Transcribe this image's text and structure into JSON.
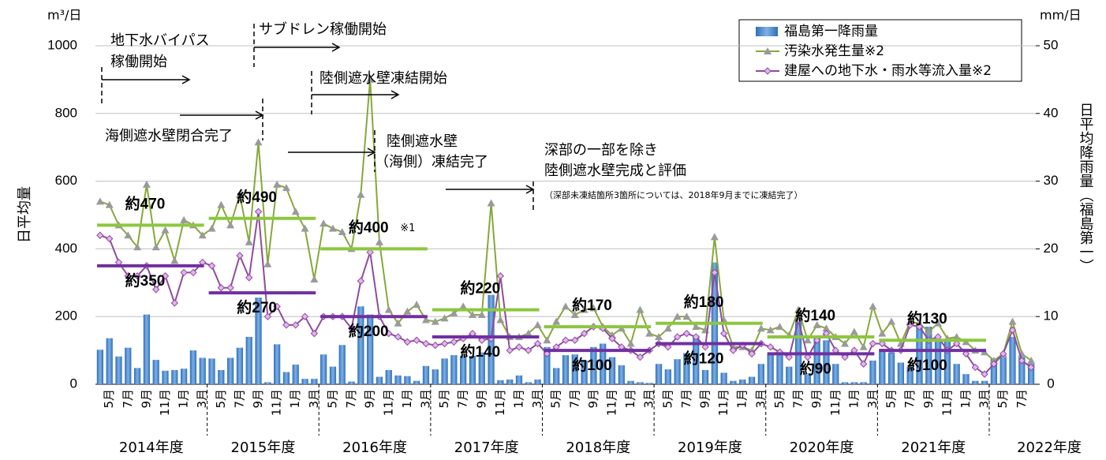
{
  "chart_data": {
    "type": "bar_line",
    "y_unit": "m³/日",
    "y2_unit": "mm/日",
    "ylabel": "日平均量",
    "y2label": "日平均降雨量（福島第一）",
    "ylim": [
      0,
      1000
    ],
    "yticks": [
      0,
      200,
      400,
      600,
      800,
      1000
    ],
    "y2lim": [
      0,
      50
    ],
    "y2ticks": [
      0,
      10,
      20,
      30,
      40,
      50
    ],
    "grid": true,
    "categories": [
      null,
      "5月",
      null,
      "7月",
      null,
      "9月",
      null,
      "11月",
      null,
      "1月",
      null,
      "3月",
      null,
      "5月",
      null,
      "7月",
      null,
      "9月",
      null,
      "11月",
      null,
      "1月",
      null,
      "3月",
      null,
      "5月",
      null,
      "7月",
      null,
      "9月",
      null,
      "11月",
      null,
      "1月",
      null,
      "3月",
      null,
      "5月",
      null,
      "7月",
      null,
      "9月",
      null,
      "11月",
      null,
      "1月",
      null,
      "3月",
      null,
      "5月",
      null,
      "7月",
      null,
      "9月",
      null,
      "11月",
      null,
      "1月",
      null,
      "3月",
      null,
      "5月",
      null,
      "7月",
      null,
      "9月",
      null,
      "11月",
      null,
      "1月",
      null,
      "3月",
      null,
      "5月",
      null,
      "7月",
      null,
      "9月",
      null,
      "11月",
      null,
      "1月",
      null,
      "3月",
      null,
      "5月",
      null,
      "7月",
      null,
      "9月",
      null,
      "11月",
      null,
      "1月",
      null,
      "3月",
      null,
      "5月",
      null,
      "7月",
      null
    ],
    "year_labels": [
      "2014年度",
      "2015年度",
      "2016年度",
      "2017年度",
      "2018年度",
      "2019年度",
      "2020年度",
      "2021年度",
      "2022年度"
    ],
    "series": [
      {
        "name": "福島第一降雨量",
        "kind": "bar",
        "axis": "y2",
        "color": "#5b9bd5",
        "values": [
          5.1,
          6.8,
          4.1,
          5.4,
          2.4,
          10.3,
          3.6,
          2.0,
          2.1,
          2.3,
          5.0,
          3.9,
          3.8,
          2.1,
          3.9,
          5.4,
          7.0,
          12.8,
          0.3,
          5.9,
          1.8,
          2.9,
          0.8,
          0.8,
          4.4,
          2.6,
          5.8,
          0.4,
          11.5,
          10.3,
          1.1,
          2.1,
          1.3,
          1.2,
          0.5,
          2.7,
          2.2,
          3.8,
          4.3,
          4.2,
          4.2,
          4.7,
          13.2,
          0.6,
          0.7,
          1.3,
          0.3,
          0.7,
          5.5,
          2.4,
          4.3,
          4.4,
          3.5,
          5.5,
          6.0,
          4.0,
          2.8,
          0.5,
          0.3,
          0.2,
          3.0,
          2.2,
          3.7,
          4.6,
          7.2,
          2.1,
          18.0,
          1.7,
          0.5,
          0.7,
          1.1,
          3.0,
          4.5,
          4.3,
          2.6,
          9.5,
          1.6,
          7.0,
          6.5,
          3.0,
          0.3,
          0.3,
          0.3,
          3.5,
          5.2,
          4.7,
          3.2,
          2.6,
          8.7,
          8.5,
          6.6,
          6.5,
          3.0,
          1.5,
          0.5,
          0.5,
          3.8,
          4.0,
          7.0,
          4.0,
          3.0
        ]
      },
      {
        "name": "汚染水発生量※2",
        "kind": "line",
        "marker": "triangle",
        "color": "#86a83a",
        "values": [
          540,
          530,
          470,
          440,
          405,
          590,
          405,
          455,
          365,
          485,
          470,
          440,
          460,
          530,
          470,
          560,
          420,
          715,
          355,
          590,
          580,
          510,
          460,
          310,
          475,
          460,
          450,
          400,
          560,
          900,
          420,
          220,
          180,
          215,
          235,
          190,
          185,
          195,
          210,
          230,
          205,
          205,
          535,
          190,
          140,
          140,
          150,
          175,
          130,
          185,
          230,
          205,
          220,
          225,
          170,
          145,
          165,
          120,
          220,
          150,
          140,
          165,
          200,
          200,
          170,
          160,
          435,
          190,
          110,
          110,
          100,
          165,
          160,
          170,
          145,
          220,
          130,
          175,
          165,
          140,
          120,
          155,
          110,
          230,
          150,
          185,
          120,
          185,
          180,
          155,
          180,
          135,
          140,
          125,
          100,
          95,
          70,
          90,
          185,
          90,
          70
        ]
      },
      {
        "name": "建屋への地下水・雨水等流入量※2",
        "kind": "line",
        "marker": "diamond",
        "color": "#8e4c9e",
        "values": [
          440,
          430,
          360,
          320,
          320,
          350,
          280,
          320,
          240,
          330,
          330,
          360,
          350,
          285,
          285,
          380,
          315,
          510,
          200,
          230,
          175,
          175,
          200,
          150,
          200,
          200,
          200,
          165,
          305,
          390,
          200,
          150,
          140,
          125,
          130,
          120,
          115,
          120,
          125,
          135,
          150,
          130,
          135,
          320,
          100,
          110,
          100,
          120,
          90,
          110,
          130,
          130,
          150,
          170,
          165,
          135,
          110,
          100,
          80,
          100,
          120,
          110,
          140,
          150,
          140,
          110,
          330,
          150,
          100,
          115,
          90,
          120,
          110,
          95,
          80,
          190,
          80,
          130,
          150,
          100,
          80,
          100,
          60,
          120,
          120,
          100,
          100,
          175,
          170,
          130,
          140,
          100,
          120,
          90,
          50,
          30,
          60,
          90,
          160,
          70,
          50
        ]
      }
    ],
    "averages": [
      {
        "color": "#8dc63f",
        "values": [
          470,
          490,
          400,
          220,
          170,
          180,
          140,
          130
        ],
        "value_labels": [
          "約470",
          "約490",
          "約400",
          "約220",
          "約170",
          "約180",
          "約140",
          "約130"
        ]
      },
      {
        "color": "#7030a0",
        "values": [
          350,
          270,
          200,
          140,
          100,
          120,
          90,
          100
        ],
        "value_labels": [
          "約350",
          "約270",
          "約200",
          "約140",
          "約100",
          "約120",
          "約90",
          "約100"
        ]
      }
    ],
    "average_note": "※1",
    "events": [
      {
        "lines": [
          "地下水バイパス",
          "稼働開始"
        ]
      },
      {
        "lines": [
          "サブドレン稼働開始"
        ]
      },
      {
        "lines": [
          "陸側遮水壁凍結開始"
        ]
      },
      {
        "lines": [
          "海側遮水壁閉合完了"
        ]
      },
      {
        "lines": [
          "陸側遮水壁",
          "（海側）凍結完了"
        ]
      },
      {
        "lines": [
          "深部の一部を除き",
          "陸側遮水壁完成と評価"
        ],
        "note": "（深部未凍結箇所3箇所については、2018年9月までに凍結完了）"
      }
    ]
  }
}
